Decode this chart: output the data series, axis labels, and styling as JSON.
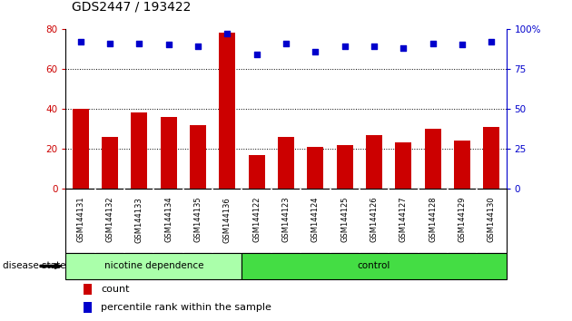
{
  "title": "GDS2447 / 193422",
  "categories": [
    "GSM144131",
    "GSM144132",
    "GSM144133",
    "GSM144134",
    "GSM144135",
    "GSM144136",
    "GSM144122",
    "GSM144123",
    "GSM144124",
    "GSM144125",
    "GSM144126",
    "GSM144127",
    "GSM144128",
    "GSM144129",
    "GSM144130"
  ],
  "counts": [
    40,
    26,
    38,
    36,
    32,
    78,
    17,
    26,
    21,
    22,
    27,
    23,
    30,
    24,
    31
  ],
  "percentiles": [
    92,
    91,
    91,
    90,
    89,
    97,
    84,
    91,
    86,
    89,
    89,
    88,
    91,
    90,
    92
  ],
  "bar_color": "#cc0000",
  "dot_color": "#0000cc",
  "left_ylim": [
    0,
    80
  ],
  "right_ylim": [
    0,
    100
  ],
  "left_yticks": [
    0,
    20,
    40,
    60,
    80
  ],
  "right_yticks": [
    0,
    25,
    50,
    75,
    100
  ],
  "right_yticklabels": [
    "0",
    "25",
    "50",
    "75",
    "100%"
  ],
  "grid_values": [
    20,
    40,
    60
  ],
  "n_nicotine": 6,
  "n_control": 9,
  "nicotine_color": "#aaffaa",
  "control_color": "#44dd44",
  "label_row_bg": "#cccccc",
  "legend_count_label": "count",
  "legend_pct_label": "percentile rank within the sample",
  "disease_state_label": "disease state",
  "nicotine_label": "nicotine dependence",
  "control_label": "control",
  "title_fontsize": 10,
  "tick_fontsize": 7.5,
  "bar_width": 0.55
}
